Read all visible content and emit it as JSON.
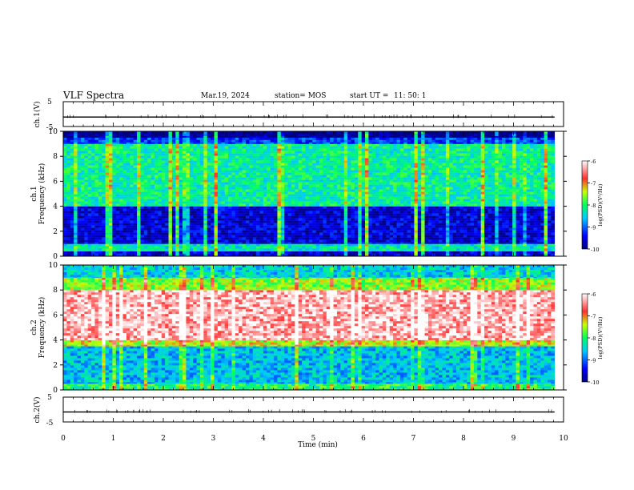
{
  "header": {
    "title": "VLF Spectra",
    "date": "Mar.19, 2024",
    "station": "station= MOS",
    "start_label": "start  UT =",
    "start_time": "11: 50: 1"
  },
  "chart_data": [
    {
      "type": "line",
      "panel": "ch1-waveform",
      "ylabel": "ch.1(V)",
      "ylim": [
        -5,
        5
      ],
      "yticks": [
        "5",
        "-5"
      ],
      "xlim": [
        0,
        10
      ],
      "x": [
        0,
        9.82
      ],
      "series": [
        {
          "values": [
            -1.2,
            -1.2
          ]
        }
      ]
    },
    {
      "type": "heatmap",
      "panel": "ch1-spectrogram",
      "ylabel": "ch.1\nFrequency (kHz)",
      "ylim": [
        0,
        10
      ],
      "yticks": [
        "0",
        "2",
        "4",
        "6",
        "8",
        "10"
      ],
      "xlim": [
        0,
        10
      ],
      "data_xmax": 9.82,
      "colorbar": {
        "label": "log(PSD)(V²/Hz)",
        "range": [
          -10,
          -6
        ],
        "ticks": [
          "-6",
          "-7",
          "-8",
          "-9",
          "-10"
        ]
      },
      "bands": [
        {
          "fmin": 0,
          "fmax": 0.4,
          "level": -9.6
        },
        {
          "fmin": 0.4,
          "fmax": 1.0,
          "level": -8.3
        },
        {
          "fmin": 1.0,
          "fmax": 4.0,
          "level": -9.6
        },
        {
          "fmin": 4.0,
          "fmax": 9.0,
          "level": -8.2
        },
        {
          "fmin": 9.0,
          "fmax": 9.5,
          "level": -9.2
        },
        {
          "fmin": 9.5,
          "fmax": 10,
          "level": -10
        }
      ]
    },
    {
      "type": "heatmap",
      "panel": "ch2-spectrogram",
      "ylabel": "ch.2\nFrequency (kHz)",
      "ylim": [
        0,
        10
      ],
      "yticks": [
        "0",
        "2",
        "4",
        "6",
        "8",
        "10"
      ],
      "xlim": [
        0,
        10
      ],
      "data_xmax": 9.82,
      "colorbar": {
        "label": "log(PSD)(V²/Hz)",
        "range": [
          -10,
          -6
        ],
        "ticks": [
          "-6",
          "-7",
          "-8",
          "-9",
          "-10"
        ]
      },
      "bands": [
        {
          "fmin": 0,
          "fmax": 0.5,
          "level": -8.0
        },
        {
          "fmin": 0.5,
          "fmax": 3.5,
          "level": -8.6
        },
        {
          "fmin": 3.5,
          "fmax": 4.0,
          "level": -7.4
        },
        {
          "fmin": 4.0,
          "fmax": 8.0,
          "level": -6.3
        },
        {
          "fmin": 8.0,
          "fmax": 9.0,
          "level": -7.6
        },
        {
          "fmin": 9.0,
          "fmax": 10,
          "level": -8.5
        }
      ]
    },
    {
      "type": "line",
      "panel": "ch2-waveform",
      "ylabel": "ch.2(V)",
      "ylim": [
        -5,
        5
      ],
      "yticks": [
        "5",
        "-5"
      ],
      "xlim": [
        0,
        10
      ],
      "x": [
        0,
        9.82
      ],
      "series": [
        {
          "values": [
            -1.0,
            -1.0
          ]
        }
      ]
    }
  ],
  "xaxis": {
    "label": "Time  (min)",
    "ticks": [
      "0",
      "1",
      "2",
      "3",
      "4",
      "5",
      "6",
      "7",
      "8",
      "9",
      "10"
    ]
  }
}
